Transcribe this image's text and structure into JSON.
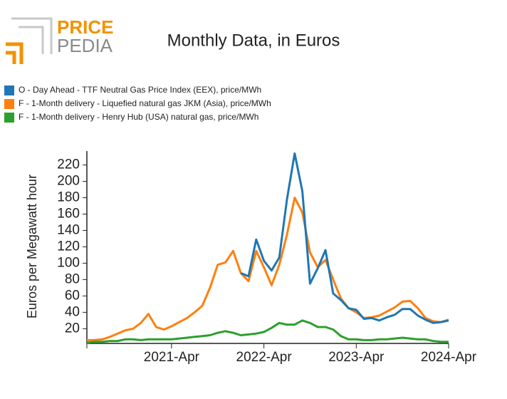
{
  "logo": {
    "first": "PRICE",
    "second": "PEDIA"
  },
  "chart_data": {
    "type": "line",
    "title": "Monthly Data, in Euros",
    "y_label": "Euros per Megawatt hour",
    "categories": [
      null,
      null,
      null,
      null,
      null,
      null,
      null,
      null,
      null,
      null,
      null,
      "2021-Apr",
      null,
      null,
      null,
      null,
      null,
      null,
      null,
      null,
      null,
      null,
      null,
      "2022-Apr",
      null,
      null,
      null,
      null,
      null,
      null,
      null,
      null,
      null,
      null,
      null,
      "2023-Apr",
      null,
      null,
      null,
      null,
      null,
      null,
      null,
      null,
      null,
      null,
      null,
      "2024-Apr"
    ],
    "ylim": [
      2,
      237
    ],
    "yticks": [
      20,
      40,
      60,
      80,
      100,
      120,
      140,
      160,
      180,
      200,
      220
    ],
    "legend": "top-left",
    "series": [
      {
        "name": "O - Day Ahead - TTF Neutral Gas Price Index (EEX), price/MWh",
        "color": "#1f77b4",
        "values": [
          null,
          null,
          null,
          null,
          null,
          null,
          null,
          null,
          null,
          null,
          null,
          null,
          null,
          null,
          null,
          null,
          null,
          null,
          null,
          null,
          88,
          84,
          129,
          103,
          91,
          107,
          178,
          234,
          188,
          75,
          94,
          116,
          63,
          55,
          45,
          43,
          32,
          33,
          30,
          34,
          37,
          44,
          44,
          36,
          31,
          27,
          28,
          30
        ]
      },
      {
        "name": "F - 1-Month delivery - Liquefied natural gas JKM (Asia), price/MWh",
        "color": "#ff7f0e",
        "values": [
          6,
          6,
          7,
          10,
          14,
          18,
          20,
          27,
          38,
          22,
          19,
          23,
          28,
          33,
          40,
          48,
          70,
          98,
          101,
          115,
          88,
          78,
          115,
          95,
          73,
          98,
          135,
          180,
          162,
          113,
          95,
          104,
          80,
          57,
          45,
          40,
          33,
          34,
          36,
          41,
          46,
          53,
          54,
          45,
          33,
          29,
          28,
          31
        ]
      },
      {
        "name": "F - 1-Month delivery - Henry Hub (USA) natural gas, price/MWh",
        "color": "#2ca02c",
        "values": [
          3,
          4,
          4,
          5,
          5,
          7,
          7,
          6,
          7,
          7,
          7,
          7,
          8,
          9,
          10,
          11,
          12,
          15,
          17,
          15,
          12,
          13,
          14,
          16,
          21,
          27,
          25,
          25,
          30,
          27,
          22,
          22,
          19,
          11,
          7,
          7,
          6,
          6,
          7,
          7,
          8,
          9,
          8,
          7,
          7,
          5,
          4,
          4
        ]
      }
    ]
  }
}
